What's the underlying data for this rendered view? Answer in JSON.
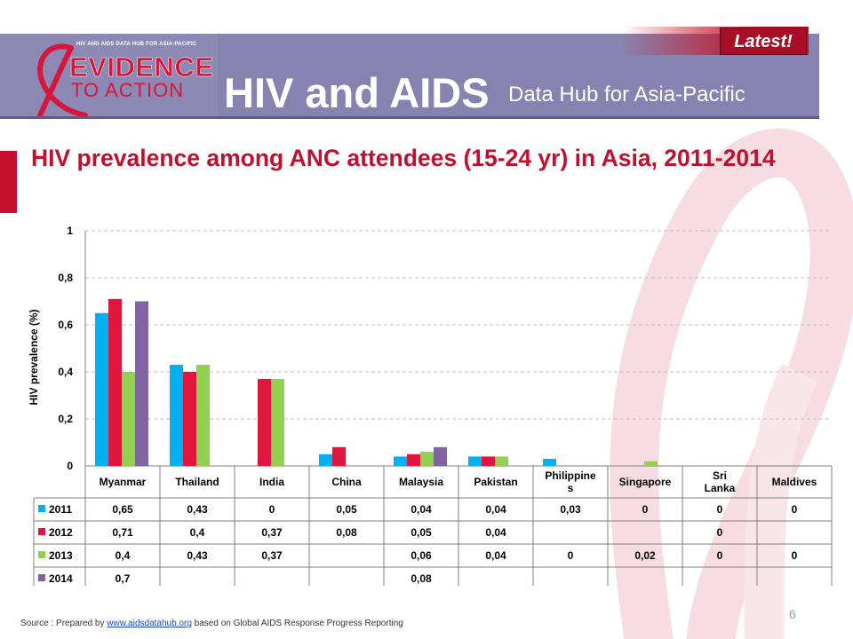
{
  "header": {
    "logo_top_text": "HIV AND AIDS DATA HUB FOR ASIA-PACIFIC",
    "logo_evidence": "EVIDENCE",
    "logo_action": "TO ACTION",
    "title": "HIV and AIDS",
    "subtitle": "Data Hub for Asia-Pacific",
    "latest_label": "Latest!"
  },
  "slide": {
    "title": "HIV prevalence among ANC attendees (15-24 yr) in Asia, 2011-2014",
    "page_number": "6"
  },
  "footer": {
    "prefix": "Source : Prepared by ",
    "link_text": "www.aidsdatahub.org",
    "suffix": " based on Global AIDS Response Progress Reporting"
  },
  "colors": {
    "header": "#8683b0",
    "title_red": "#c0102e",
    "series": [
      "#00b0f0",
      "#e0163d",
      "#92d050",
      "#8064a2"
    ]
  },
  "chart_data": {
    "type": "bar",
    "ylabel": "HIV prevalence (%)",
    "ylim": [
      0,
      1
    ],
    "yticks": [
      "0",
      "0,2",
      "0,4",
      "0,6",
      "0,8",
      "1"
    ],
    "ytick_values": [
      0,
      0.2,
      0.4,
      0.6,
      0.8,
      1
    ],
    "grid": true,
    "legend": "data-table",
    "categories": [
      "Myanmar",
      "Thailand",
      "India",
      "China",
      "Malaysia",
      "Pakistan",
      "Philippines",
      "Singapore",
      "Sri Lanka",
      "Maldives"
    ],
    "category_labels": [
      [
        "Myanmar"
      ],
      [
        "Thailand"
      ],
      [
        "India"
      ],
      [
        "China"
      ],
      [
        "Malaysia"
      ],
      [
        "Pakistan"
      ],
      [
        "Philippine",
        "s"
      ],
      [
        "Singapore"
      ],
      [
        "Sri",
        "Lanka"
      ],
      [
        "Maldives"
      ]
    ],
    "series": [
      {
        "name": "2011",
        "values": [
          0.65,
          0.43,
          0,
          0.05,
          0.04,
          0.04,
          0.03,
          0,
          0,
          0
        ],
        "labels": [
          "0,65",
          "0,43",
          "0",
          "0,05",
          "0,04",
          "0,04",
          "0,03",
          "0",
          "0",
          "0"
        ]
      },
      {
        "name": "2012",
        "values": [
          0.71,
          0.4,
          0.37,
          0.08,
          0.05,
          0.04,
          null,
          null,
          0,
          null
        ],
        "labels": [
          "0,71",
          "0,4",
          "0,37",
          "0,08",
          "0,05",
          "0,04",
          "",
          "",
          "0",
          ""
        ]
      },
      {
        "name": "2013",
        "values": [
          0.4,
          0.43,
          0.37,
          null,
          0.06,
          0.04,
          0,
          0.02,
          0,
          0
        ],
        "labels": [
          "0,4",
          "0,43",
          "0,37",
          "",
          "0,06",
          "0,04",
          "0",
          "0,02",
          "0",
          "0"
        ]
      },
      {
        "name": "2014",
        "values": [
          0.7,
          null,
          null,
          null,
          0.08,
          null,
          null,
          null,
          null,
          null
        ],
        "labels": [
          "0,7",
          "",
          "",
          "",
          "0,08",
          "",
          "",
          "",
          "",
          ""
        ]
      }
    ]
  }
}
